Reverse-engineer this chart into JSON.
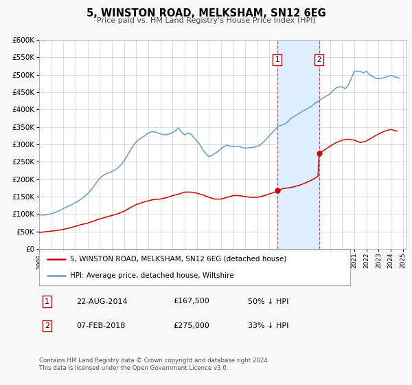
{
  "title": "5, WINSTON ROAD, MELKSHAM, SN12 6EG",
  "subtitle": "Price paid vs. HM Land Registry's House Price Index (HPI)",
  "ylim": [
    0,
    600000
  ],
  "yticks": [
    0,
    50000,
    100000,
    150000,
    200000,
    250000,
    300000,
    350000,
    400000,
    450000,
    500000,
    550000,
    600000
  ],
  "xlim_start": 1995.0,
  "xlim_end": 2025.3,
  "legend_label_red": "5, WINSTON ROAD, MELKSHAM, SN12 6EG (detached house)",
  "legend_label_blue": "HPI: Average price, detached house, Wiltshire",
  "sale1_date": "22-AUG-2014",
  "sale1_price": 167500,
  "sale1_pct": "50% ↓ HPI",
  "sale2_date": "07-FEB-2018",
  "sale2_price": 275000,
  "sale2_pct": "33% ↓ HPI",
  "sale1_year": 2014.64,
  "sale2_year": 2018.09,
  "footer1": "Contains HM Land Registry data © Crown copyright and database right 2024.",
  "footer2": "This data is licensed under the Open Government Licence v3.0.",
  "bg_color": "#f8f8f8",
  "plot_bg_color": "#ffffff",
  "grid_color": "#cccccc",
  "red_color": "#cc0000",
  "blue_color": "#6699cc",
  "shade_color": "#ddeeff",
  "vline_color": "#cc0000",
  "hpi_data_x": [
    1995.0,
    1995.25,
    1995.5,
    1995.75,
    1996.0,
    1996.25,
    1996.5,
    1996.75,
    1997.0,
    1997.25,
    1997.5,
    1997.75,
    1998.0,
    1998.25,
    1998.5,
    1998.75,
    1999.0,
    1999.25,
    1999.5,
    1999.75,
    2000.0,
    2000.25,
    2000.5,
    2000.75,
    2001.0,
    2001.25,
    2001.5,
    2001.75,
    2002.0,
    2002.25,
    2002.5,
    2002.75,
    2003.0,
    2003.25,
    2003.5,
    2003.75,
    2004.0,
    2004.25,
    2004.5,
    2004.75,
    2005.0,
    2005.25,
    2005.5,
    2005.75,
    2006.0,
    2006.25,
    2006.5,
    2006.75,
    2007.0,
    2007.25,
    2007.5,
    2007.75,
    2008.0,
    2008.25,
    2008.5,
    2008.75,
    2009.0,
    2009.25,
    2009.5,
    2009.75,
    2010.0,
    2010.25,
    2010.5,
    2010.75,
    2011.0,
    2011.25,
    2011.5,
    2011.75,
    2012.0,
    2012.25,
    2012.5,
    2012.75,
    2013.0,
    2013.25,
    2013.5,
    2013.75,
    2014.0,
    2014.25,
    2014.5,
    2014.75,
    2015.0,
    2015.25,
    2015.5,
    2015.75,
    2016.0,
    2016.25,
    2016.5,
    2016.75,
    2017.0,
    2017.25,
    2017.5,
    2017.75,
    2018.0,
    2018.25,
    2018.5,
    2018.75,
    2019.0,
    2019.25,
    2019.5,
    2019.75,
    2020.0,
    2020.25,
    2020.5,
    2020.75,
    2021.0,
    2021.25,
    2021.5,
    2021.75,
    2022.0,
    2022.25,
    2022.5,
    2022.75,
    2023.0,
    2023.25,
    2023.5,
    2023.75,
    2024.0,
    2024.25,
    2024.5,
    2024.75
  ],
  "hpi_data_y": [
    98000,
    97000,
    97500,
    99000,
    101000,
    104000,
    107000,
    111000,
    116000,
    120000,
    124000,
    128000,
    133000,
    138000,
    144000,
    151000,
    158000,
    168000,
    179000,
    192000,
    203000,
    210000,
    215000,
    219000,
    222000,
    226000,
    233000,
    241000,
    252000,
    267000,
    282000,
    296000,
    307000,
    314000,
    320000,
    326000,
    332000,
    336000,
    336000,
    334000,
    330000,
    328000,
    328000,
    330000,
    334000,
    340000,
    347000,
    335000,
    327000,
    332000,
    330000,
    320000,
    310000,
    300000,
    285000,
    273000,
    265000,
    268000,
    274000,
    280000,
    287000,
    294000,
    298000,
    295000,
    293000,
    295000,
    294000,
    291000,
    289000,
    290000,
    291000,
    292000,
    294000,
    299000,
    307000,
    316000,
    325000,
    335000,
    344000,
    352000,
    355000,
    358000,
    365000,
    374000,
    380000,
    385000,
    390000,
    396000,
    400000,
    405000,
    410000,
    418000,
    423000,
    430000,
    435000,
    440000,
    445000,
    455000,
    462000,
    465000,
    465000,
    460000,
    470000,
    490000,
    510000,
    510000,
    510000,
    505000,
    510000,
    500000,
    495000,
    490000,
    488000,
    490000,
    492000,
    495000,
    498000,
    495000,
    492000,
    490000
  ],
  "red_data_x": [
    1995.0,
    1995.5,
    1996.0,
    1996.5,
    1997.0,
    1997.5,
    1998.0,
    1998.5,
    1999.0,
    1999.5,
    2000.0,
    2000.5,
    2001.0,
    2001.5,
    2002.0,
    2002.5,
    2003.0,
    2003.5,
    2004.0,
    2004.5,
    2005.0,
    2005.5,
    2006.0,
    2006.5,
    2007.0,
    2007.5,
    2008.0,
    2008.5,
    2009.0,
    2009.5,
    2010.0,
    2010.5,
    2011.0,
    2011.5,
    2012.0,
    2012.5,
    2013.0,
    2013.5,
    2014.0,
    2014.5,
    2014.64,
    2014.75,
    2015.0,
    2015.5,
    2016.0,
    2016.5,
    2017.0,
    2017.5,
    2018.0,
    2018.09,
    2018.25,
    2018.5,
    2019.0,
    2019.5,
    2020.0,
    2020.5,
    2021.0,
    2021.5,
    2022.0,
    2022.5,
    2023.0,
    2023.5,
    2024.0,
    2024.5
  ],
  "red_data_y": [
    47000,
    49000,
    51000,
    53000,
    56000,
    60000,
    65000,
    70000,
    74000,
    80000,
    86000,
    91000,
    96000,
    101000,
    108000,
    118000,
    127000,
    133000,
    138000,
    142000,
    143000,
    147000,
    153000,
    157000,
    163000,
    163000,
    160000,
    155000,
    148000,
    143000,
    143000,
    148000,
    153000,
    153000,
    150000,
    148000,
    148000,
    152000,
    158000,
    163000,
    167500,
    168000,
    172000,
    175000,
    178000,
    183000,
    190000,
    198000,
    208000,
    275000,
    278000,
    283000,
    295000,
    305000,
    312000,
    315000,
    312000,
    305000,
    310000,
    320000,
    330000,
    338000,
    343000,
    338000
  ]
}
